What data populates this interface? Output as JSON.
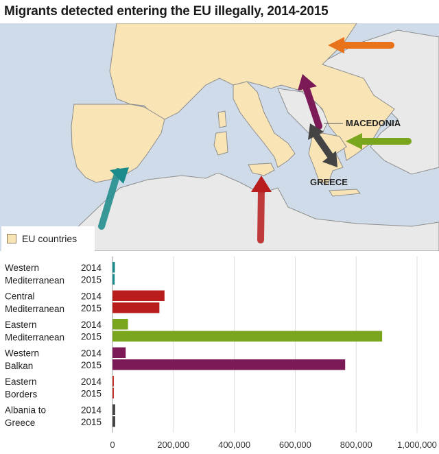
{
  "title": "Migrants detected entering the EU illegally, 2014-2015",
  "map": {
    "legend_label": "EU countries",
    "labels": {
      "macedonia": "MACEDONIA",
      "greece": "GREECE"
    },
    "colors": {
      "sea": "#cfdbe8",
      "eu": "#f8e4b4",
      "non_eu": "#e9e9e9",
      "border": "#8d8d8d"
    }
  },
  "chart_data": {
    "type": "bar",
    "orientation": "horizontal",
    "title": "",
    "xlabel": "",
    "ylabel": "",
    "xlim": [
      0,
      1000000
    ],
    "xticks": [
      0,
      200000,
      400000,
      600000,
      800000,
      1000000
    ],
    "xtick_labels": [
      "0",
      "200,000",
      "400,000",
      "600,000",
      "800,000",
      "1,000,000"
    ],
    "grid": true,
    "years": [
      "2014",
      "2015"
    ],
    "groups": [
      {
        "label_lines": [
          "Western",
          "Mediterranean"
        ],
        "color": "#1a8a8a",
        "values": [
          7840,
          7164
        ]
      },
      {
        "label_lines": [
          "Central",
          "Mediterranean"
        ],
        "color": "#b81c1c",
        "values": [
          170760,
          153946
        ]
      },
      {
        "label_lines": [
          "Eastern",
          "Mediterranean"
        ],
        "color": "#7aa61e",
        "values": [
          50830,
          885386
        ]
      },
      {
        "label_lines": [
          "Western",
          "Balkan"
        ],
        "color": "#7b1a56",
        "values": [
          43360,
          764038
        ]
      },
      {
        "label_lines": [
          "Eastern",
          "Borders"
        ],
        "color": "#c0392b",
        "values": [
          1270,
          1927
        ]
      },
      {
        "label_lines": [
          "Albania to",
          "Greece"
        ],
        "color": "#444444",
        "values": [
          8840,
          8932
        ]
      }
    ]
  }
}
